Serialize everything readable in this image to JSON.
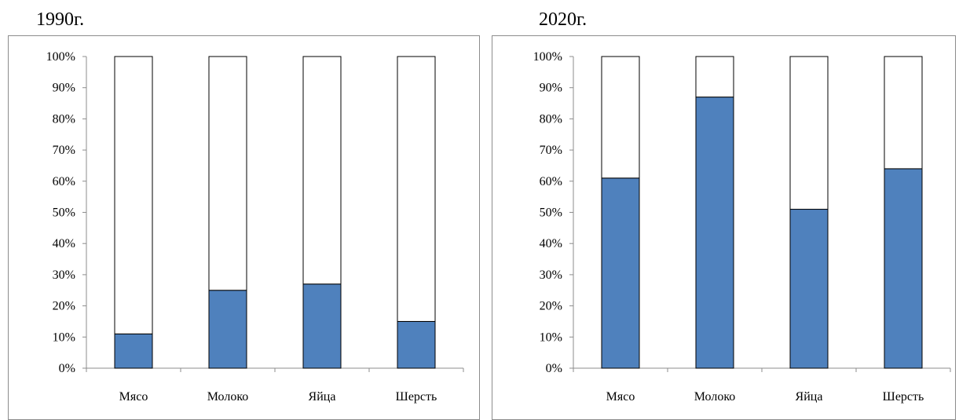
{
  "chart_data": [
    {
      "type": "bar",
      "stacked": true,
      "percent": true,
      "title": "1990г.",
      "categories": [
        "Мясо",
        "Молоко",
        "Яйца",
        "Шерсть"
      ],
      "series": [
        {
          "values": [
            11,
            25,
            27,
            15
          ],
          "color": "#4f81bd"
        },
        {
          "values": [
            89,
            75,
            73,
            85
          ],
          "color": "#ffffff"
        }
      ],
      "ylim": [
        0,
        100
      ],
      "yticks": [
        "0%",
        "10%",
        "20%",
        "30%",
        "40%",
        "50%",
        "60%",
        "70%",
        "80%",
        "90%",
        "100%"
      ],
      "grid": false,
      "legend": "none"
    },
    {
      "type": "bar",
      "stacked": true,
      "percent": true,
      "title": "2020г.",
      "categories": [
        "Мясо",
        "Молоко",
        "Яйца",
        "Шерсть"
      ],
      "series": [
        {
          "values": [
            61,
            87,
            51,
            64
          ],
          "color": "#4f81bd"
        },
        {
          "values": [
            39,
            13,
            49,
            36
          ],
          "color": "#ffffff"
        }
      ],
      "ylim": [
        0,
        100
      ],
      "yticks": [
        "0%",
        "10%",
        "20%",
        "30%",
        "40%",
        "50%",
        "60%",
        "70%",
        "80%",
        "90%",
        "100%"
      ],
      "grid": false,
      "legend": "none"
    }
  ]
}
